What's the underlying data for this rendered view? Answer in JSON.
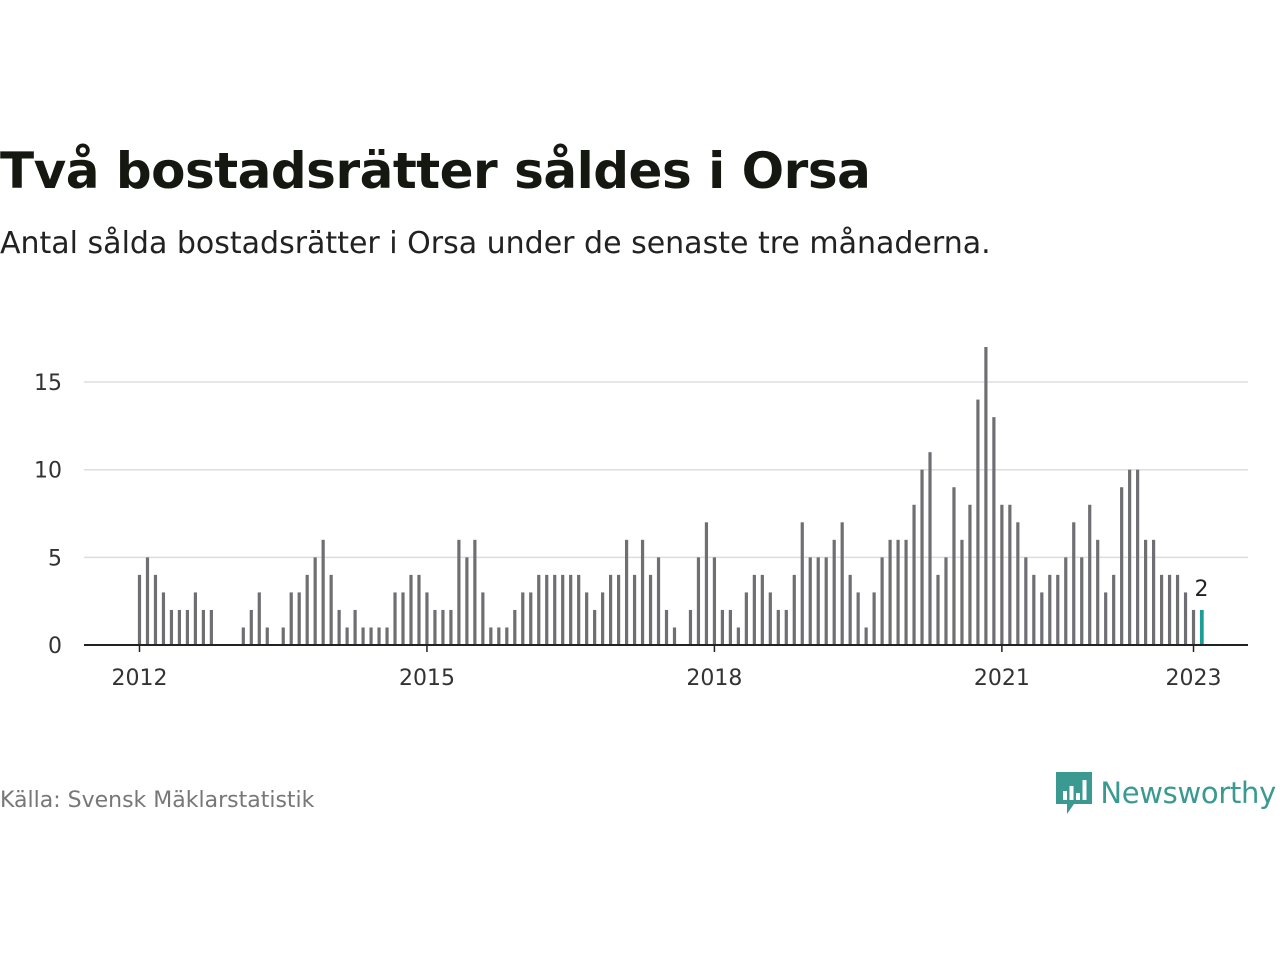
{
  "title": "Två bostadsrätter såldes i Orsa",
  "subtitle": "Antal sålda bostadsrätter i Orsa under de senaste tre månaderna.",
  "source": "Källa: Svensk Mäklarstatistik",
  "brand": {
    "name": "Newsworthy",
    "icon": "newsworthy-logo-icon",
    "color": "#3a9a92"
  },
  "colors": {
    "bar": "#6f6e73",
    "highlight": "#1a9e97",
    "grid": "#dddddd",
    "axis": "#222222"
  },
  "chart_data": {
    "type": "bar",
    "title": "Två bostadsrätter såldes i Orsa",
    "xlabel": "",
    "ylabel": "",
    "ylim": [
      0,
      17
    ],
    "yticks": [
      0,
      5,
      10,
      15
    ],
    "xtick_labels": [
      "2012",
      "2015",
      "2018",
      "2021",
      "2023"
    ],
    "grid": true,
    "start": {
      "year": 2012,
      "month": 1
    },
    "values": [
      4,
      5,
      4,
      3,
      2,
      2,
      2,
      3,
      2,
      2,
      0,
      0,
      0,
      1,
      2,
      3,
      1,
      0,
      1,
      3,
      3,
      4,
      5,
      6,
      4,
      2,
      1,
      2,
      1,
      1,
      1,
      1,
      3,
      3,
      4,
      4,
      3,
      2,
      2,
      2,
      6,
      5,
      6,
      3,
      1,
      1,
      1,
      2,
      3,
      3,
      4,
      4,
      4,
      4,
      4,
      4,
      3,
      2,
      3,
      4,
      4,
      6,
      4,
      6,
      4,
      5,
      2,
      1,
      0,
      2,
      5,
      7,
      5,
      2,
      2,
      1,
      3,
      4,
      4,
      3,
      2,
      2,
      4,
      7,
      5,
      5,
      5,
      6,
      7,
      4,
      3,
      1,
      3,
      5,
      6,
      6,
      6,
      8,
      10,
      11,
      4,
      5,
      9,
      6,
      8,
      14,
      17,
      13,
      8,
      8,
      7,
      5,
      4,
      3,
      4,
      4,
      5,
      7,
      5,
      8,
      6,
      3,
      4,
      9,
      10,
      10,
      6,
      6,
      4,
      4,
      4,
      3,
      2,
      2
    ],
    "highlight_label": "2"
  }
}
